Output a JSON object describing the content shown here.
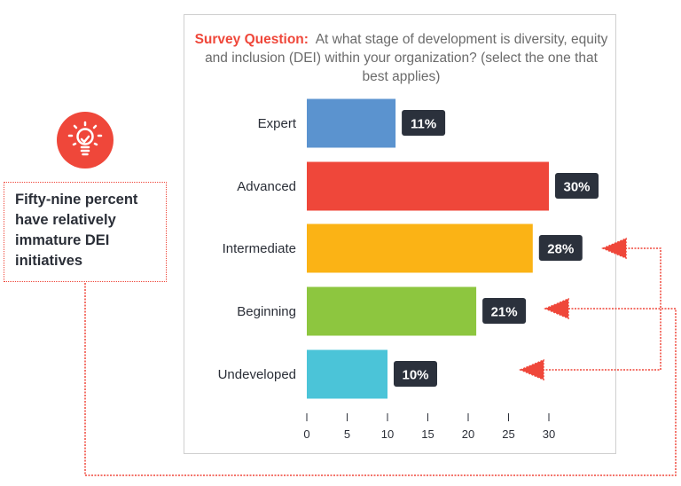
{
  "callout": {
    "text": "Fifty-nine percent have relatively immature DEI initiatives",
    "icon": "lightbulb-check-icon"
  },
  "chart_data": {
    "type": "bar",
    "orientation": "horizontal",
    "title_prefix": "Survey Question:",
    "title": "At what stage of development is diversity, equity and inclusion (DEI) within your organization? (select the one that best applies)",
    "categories": [
      "Expert",
      "Advanced",
      "Intermediate",
      "Beginning",
      "Undeveloped"
    ],
    "values": [
      11,
      30,
      28,
      21,
      10
    ],
    "data_labels": [
      "11%",
      "30%",
      "28%",
      "21%",
      "10%"
    ],
    "colors": [
      "#5b93cf",
      "#ef473a",
      "#fbb315",
      "#8dc63f",
      "#4bc4d8"
    ],
    "xlim": [
      0,
      30
    ],
    "xticks": [
      "0",
      "5",
      "10",
      "15",
      "20",
      "25",
      "30"
    ],
    "grid": false,
    "xlabel": "",
    "ylabel": ""
  }
}
